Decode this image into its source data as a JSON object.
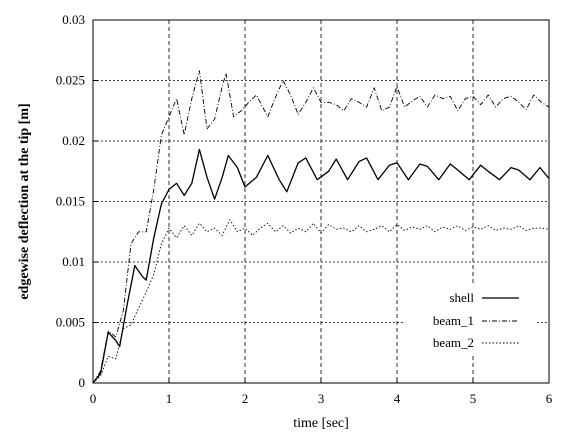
{
  "chart_data": {
    "type": "line",
    "xlabel": "time [sec]",
    "ylabel": "edgewise deflection at the tip [m]",
    "xlim": [
      0,
      6
    ],
    "ylim": [
      0,
      0.03
    ],
    "xticks": [
      0,
      1,
      2,
      3,
      4,
      5,
      6
    ],
    "yticks": [
      0,
      0.005,
      0.01,
      0.015,
      0.02,
      0.025,
      0.03
    ],
    "xtick_labels": [
      "0",
      "1",
      "2",
      "3",
      "4",
      "5",
      "6"
    ],
    "ytick_labels": [
      "0",
      "0.005",
      "0.01",
      "0.015",
      "0.02",
      "0.025",
      "0.03"
    ],
    "grid": true,
    "legend_position": "bottom-right",
    "series": [
      {
        "name": "shell",
        "style": "solid",
        "color": "#000000",
        "points": [
          [
            0,
            0
          ],
          [
            0.1,
            0.0008
          ],
          [
            0.2,
            0.0042
          ],
          [
            0.3,
            0.0035
          ],
          [
            0.35,
            0.003
          ],
          [
            0.45,
            0.0065
          ],
          [
            0.55,
            0.0097
          ],
          [
            0.65,
            0.0088
          ],
          [
            0.7,
            0.0085
          ],
          [
            0.8,
            0.012
          ],
          [
            0.9,
            0.0148
          ],
          [
            1.0,
            0.016
          ],
          [
            1.1,
            0.0165
          ],
          [
            1.2,
            0.0155
          ],
          [
            1.3,
            0.0165
          ],
          [
            1.4,
            0.0193
          ],
          [
            1.5,
            0.017
          ],
          [
            1.6,
            0.0152
          ],
          [
            1.7,
            0.017
          ],
          [
            1.78,
            0.0188
          ],
          [
            1.9,
            0.0178
          ],
          [
            2.0,
            0.0162
          ],
          [
            2.15,
            0.017
          ],
          [
            2.3,
            0.0188
          ],
          [
            2.45,
            0.0168
          ],
          [
            2.55,
            0.0158
          ],
          [
            2.7,
            0.0182
          ],
          [
            2.8,
            0.0186
          ],
          [
            2.95,
            0.0168
          ],
          [
            3.1,
            0.0175
          ],
          [
            3.2,
            0.0185
          ],
          [
            3.35,
            0.0168
          ],
          [
            3.5,
            0.0183
          ],
          [
            3.6,
            0.0186
          ],
          [
            3.75,
            0.0168
          ],
          [
            3.9,
            0.018
          ],
          [
            4.0,
            0.0182
          ],
          [
            4.15,
            0.0168
          ],
          [
            4.3,
            0.0181
          ],
          [
            4.4,
            0.0179
          ],
          [
            4.55,
            0.0168
          ],
          [
            4.7,
            0.0181
          ],
          [
            4.8,
            0.0176
          ],
          [
            4.95,
            0.0168
          ],
          [
            5.1,
            0.018
          ],
          [
            5.2,
            0.0175
          ],
          [
            5.35,
            0.0168
          ],
          [
            5.5,
            0.0178
          ],
          [
            5.6,
            0.0176
          ],
          [
            5.75,
            0.0168
          ],
          [
            5.88,
            0.0178
          ],
          [
            6.0,
            0.0169
          ]
        ]
      },
      {
        "name": "beam_1",
        "style": "dashdot",
        "color": "#000000",
        "points": [
          [
            0,
            0
          ],
          [
            0.1,
            0.001
          ],
          [
            0.2,
            0.0043
          ],
          [
            0.3,
            0.0038
          ],
          [
            0.4,
            0.006
          ],
          [
            0.5,
            0.0115
          ],
          [
            0.6,
            0.0125
          ],
          [
            0.7,
            0.0125
          ],
          [
            0.8,
            0.016
          ],
          [
            0.9,
            0.0205
          ],
          [
            1.0,
            0.022
          ],
          [
            1.1,
            0.0235
          ],
          [
            1.2,
            0.0205
          ],
          [
            1.3,
            0.0235
          ],
          [
            1.4,
            0.0258
          ],
          [
            1.5,
            0.021
          ],
          [
            1.6,
            0.0218
          ],
          [
            1.7,
            0.0245
          ],
          [
            1.75,
            0.0256
          ],
          [
            1.85,
            0.022
          ],
          [
            1.95,
            0.0225
          ],
          [
            2.05,
            0.0232
          ],
          [
            2.15,
            0.0238
          ],
          [
            2.3,
            0.022
          ],
          [
            2.4,
            0.0236
          ],
          [
            2.5,
            0.025
          ],
          [
            2.6,
            0.0238
          ],
          [
            2.7,
            0.0222
          ],
          [
            2.8,
            0.0232
          ],
          [
            2.9,
            0.0244
          ],
          [
            3.0,
            0.0232
          ],
          [
            3.1,
            0.0232
          ],
          [
            3.2,
            0.023
          ],
          [
            3.3,
            0.0225
          ],
          [
            3.4,
            0.0235
          ],
          [
            3.5,
            0.0232
          ],
          [
            3.6,
            0.0228
          ],
          [
            3.7,
            0.0244
          ],
          [
            3.8,
            0.0225
          ],
          [
            3.9,
            0.0228
          ],
          [
            4.0,
            0.0245
          ],
          [
            4.1,
            0.0228
          ],
          [
            4.2,
            0.0233
          ],
          [
            4.3,
            0.0237
          ],
          [
            4.4,
            0.0228
          ],
          [
            4.5,
            0.0238
          ],
          [
            4.6,
            0.0235
          ],
          [
            4.7,
            0.0237
          ],
          [
            4.8,
            0.0225
          ],
          [
            4.9,
            0.0235
          ],
          [
            5.0,
            0.0237
          ],
          [
            5.1,
            0.023
          ],
          [
            5.2,
            0.0238
          ],
          [
            5.3,
            0.0228
          ],
          [
            5.4,
            0.0235
          ],
          [
            5.5,
            0.0237
          ],
          [
            5.6,
            0.0232
          ],
          [
            5.7,
            0.0226
          ],
          [
            5.8,
            0.0238
          ],
          [
            5.9,
            0.0232
          ],
          [
            6.0,
            0.0228
          ]
        ]
      },
      {
        "name": "beam_2",
        "style": "dotted",
        "color": "#000000",
        "points": [
          [
            0,
            0
          ],
          [
            0.1,
            0.0006
          ],
          [
            0.2,
            0.0022
          ],
          [
            0.3,
            0.002
          ],
          [
            0.4,
            0.0045
          ],
          [
            0.5,
            0.0048
          ],
          [
            0.6,
            0.0062
          ],
          [
            0.7,
            0.0075
          ],
          [
            0.8,
            0.009
          ],
          [
            0.9,
            0.0115
          ],
          [
            1.0,
            0.0128
          ],
          [
            1.1,
            0.012
          ],
          [
            1.2,
            0.013
          ],
          [
            1.3,
            0.0122
          ],
          [
            1.4,
            0.0132
          ],
          [
            1.5,
            0.0125
          ],
          [
            1.6,
            0.0128
          ],
          [
            1.7,
            0.0122
          ],
          [
            1.8,
            0.0135
          ],
          [
            1.9,
            0.0125
          ],
          [
            2.0,
            0.0128
          ],
          [
            2.1,
            0.0122
          ],
          [
            2.2,
            0.0128
          ],
          [
            2.3,
            0.0132
          ],
          [
            2.4,
            0.0125
          ],
          [
            2.5,
            0.013
          ],
          [
            2.6,
            0.0124
          ],
          [
            2.7,
            0.0128
          ],
          [
            2.8,
            0.0125
          ],
          [
            2.9,
            0.0132
          ],
          [
            3.0,
            0.0124
          ],
          [
            3.1,
            0.0131
          ],
          [
            3.2,
            0.0127
          ],
          [
            3.3,
            0.0128
          ],
          [
            3.4,
            0.0125
          ],
          [
            3.5,
            0.013
          ],
          [
            3.6,
            0.0125
          ],
          [
            3.7,
            0.0127
          ],
          [
            3.8,
            0.013
          ],
          [
            3.9,
            0.0125
          ],
          [
            4.0,
            0.0131
          ],
          [
            4.1,
            0.0126
          ],
          [
            4.2,
            0.0129
          ],
          [
            4.3,
            0.0127
          ],
          [
            4.4,
            0.013
          ],
          [
            4.5,
            0.0125
          ],
          [
            4.6,
            0.0129
          ],
          [
            4.7,
            0.0127
          ],
          [
            4.8,
            0.013
          ],
          [
            4.9,
            0.0126
          ],
          [
            5.0,
            0.0129
          ],
          [
            5.1,
            0.0127
          ],
          [
            5.2,
            0.013
          ],
          [
            5.3,
            0.0126
          ],
          [
            5.4,
            0.0128
          ],
          [
            5.5,
            0.0127
          ],
          [
            5.6,
            0.013
          ],
          [
            5.7,
            0.0126
          ],
          [
            5.8,
            0.0128
          ],
          [
            5.9,
            0.0128
          ],
          [
            6.0,
            0.0127
          ]
        ]
      }
    ]
  }
}
